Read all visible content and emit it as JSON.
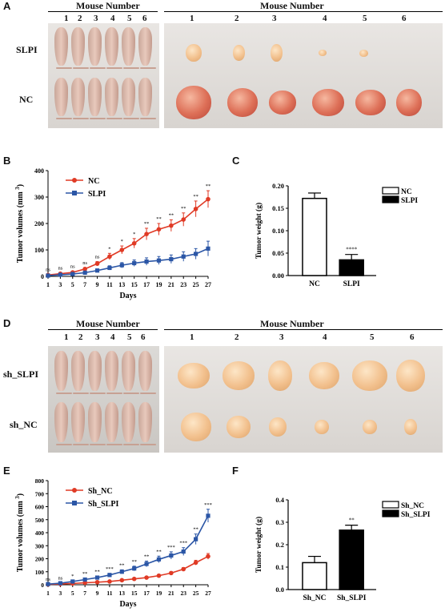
{
  "panel_a": {
    "letter": "A",
    "mouse_header": "Mouse Number",
    "tumor_header": "Mouse Number",
    "numbers": [
      "1",
      "2",
      "3",
      "4",
      "5",
      "6"
    ],
    "row_labels": [
      "SLPI",
      "NC"
    ]
  },
  "panel_d": {
    "letter": "D",
    "mouse_header": "Mouse Number",
    "tumor_header": "Mouse Number",
    "numbers": [
      "1",
      "2",
      "3",
      "4",
      "5",
      "6"
    ],
    "row_labels": [
      "sh_SLPI",
      "sh_NC"
    ]
  },
  "panel_b": {
    "letter": "B"
  },
  "panel_c": {
    "letter": "C"
  },
  "panel_e": {
    "letter": "E"
  },
  "panel_f": {
    "letter": "F"
  },
  "colors": {
    "red": "#e03a25",
    "blue": "#2b56a6",
    "black": "#000000"
  },
  "chart_data": [
    {
      "id": "B",
      "type": "line",
      "xlabel": "Days",
      "ylabel": "Tumor volumes (mm",
      "ylabel_sup": "3",
      "x": [
        1,
        3,
        5,
        7,
        9,
        11,
        13,
        15,
        17,
        19,
        21,
        23,
        25,
        27
      ],
      "ylim": [
        0,
        400
      ],
      "yticks": [
        0,
        100,
        200,
        300,
        400
      ],
      "series": [
        {
          "name": "NC",
          "color": "#e03a25",
          "marker": "circle",
          "values": [
            5,
            10,
            15,
            28,
            48,
            75,
            100,
            125,
            160,
            178,
            192,
            215,
            255,
            292
          ],
          "err": [
            2,
            3,
            4,
            5,
            8,
            12,
            15,
            18,
            22,
            22,
            22,
            25,
            30,
            32
          ]
        },
        {
          "name": "SLPI",
          "color": "#2b56a6",
          "marker": "square",
          "values": [
            3,
            6,
            9,
            14,
            22,
            32,
            42,
            50,
            56,
            60,
            65,
            75,
            85,
            105
          ],
          "err": [
            2,
            3,
            3,
            4,
            6,
            8,
            10,
            12,
            14,
            15,
            16,
            18,
            20,
            28
          ]
        }
      ],
      "sig": [
        "ns",
        "ns",
        "ns",
        "ns",
        "ns",
        "*",
        "*",
        "*",
        "**",
        "**",
        "**",
        "**",
        "**",
        "**"
      ]
    },
    {
      "id": "C",
      "type": "bar",
      "ylabel": "Tumor weight (g)",
      "categories": [
        "NC",
        "SLPI"
      ],
      "values": [
        0.172,
        0.035
      ],
      "err": [
        0.012,
        0.012
      ],
      "fills": [
        "#ffffff",
        "#000000"
      ],
      "ylim": [
        0,
        0.2
      ],
      "yticks": [
        "0.00",
        "0.05",
        "0.10",
        "0.15",
        "0.20"
      ],
      "legend": [
        "NC",
        "SLPI"
      ],
      "sig": [
        "",
        "****"
      ]
    },
    {
      "id": "E",
      "type": "line",
      "xlabel": "Days",
      "ylabel": "Tumor volumes (mm",
      "ylabel_sup": "3",
      "x": [
        1,
        3,
        5,
        7,
        9,
        11,
        13,
        15,
        17,
        19,
        21,
        23,
        25,
        27
      ],
      "ylim": [
        0,
        800
      ],
      "yticks": [
        0,
        100,
        200,
        300,
        400,
        500,
        600,
        700,
        800
      ],
      "series": [
        {
          "name": "Sh_NC",
          "color": "#e03a25",
          "marker": "circle",
          "values": [
            3,
            6,
            10,
            15,
            20,
            25,
            35,
            45,
            55,
            70,
            90,
            120,
            170,
            218
          ],
          "err": [
            1,
            2,
            2,
            3,
            3,
            4,
            5,
            6,
            7,
            8,
            10,
            12,
            18,
            22
          ]
        },
        {
          "name": "Sh_SLPI",
          "color": "#2b56a6",
          "marker": "square",
          "values": [
            5,
            12,
            25,
            40,
            55,
            75,
            100,
            125,
            160,
            195,
            225,
            255,
            350,
            530
          ],
          "err": [
            2,
            4,
            6,
            8,
            10,
            12,
            15,
            18,
            22,
            25,
            28,
            30,
            40,
            50
          ]
        }
      ],
      "sig": [
        "ns",
        "ns",
        "*",
        "**",
        "**",
        "***",
        "**",
        "**",
        "**",
        "**",
        "***",
        "***",
        "**",
        "***"
      ]
    },
    {
      "id": "F",
      "type": "bar",
      "ylabel": "Tumor weight (g)",
      "categories": [
        "Sh_NC",
        "Sh_SLPI"
      ],
      "values": [
        0.12,
        0.265
      ],
      "err": [
        0.028,
        0.022
      ],
      "fills": [
        "#ffffff",
        "#000000"
      ],
      "ylim": [
        0,
        0.4
      ],
      "yticks": [
        "0.0",
        "0.1",
        "0.2",
        "0.3",
        "0.4"
      ],
      "legend": [
        "Sh_NC",
        "Sh_SLPI"
      ],
      "sig": [
        "",
        "**"
      ]
    }
  ]
}
